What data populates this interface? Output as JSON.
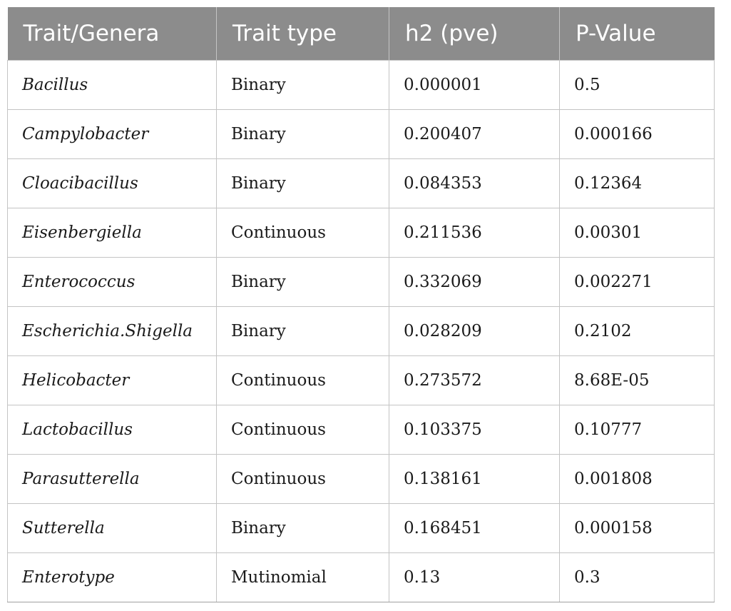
{
  "table": {
    "headers": [
      "Trait/Genera",
      "Trait type",
      "h2 (pve)",
      "P-Value"
    ],
    "rows": [
      {
        "genus": "Bacillus",
        "trait_type": "Binary",
        "h2": "0.000001",
        "p_value": "0.5"
      },
      {
        "genus": "Campylobacter",
        "trait_type": "Binary",
        "h2": "0.200407",
        "p_value": "0.000166"
      },
      {
        "genus": "Cloacibacillus",
        "trait_type": "Binary",
        "h2": "0.084353",
        "p_value": "0.12364"
      },
      {
        "genus": "Eisenbergiella",
        "trait_type": "Continuous",
        "h2": "0.211536",
        "p_value": "0.00301"
      },
      {
        "genus": "Enterococcus",
        "trait_type": "Binary",
        "h2": "0.332069",
        "p_value": "0.002271"
      },
      {
        "genus": "Escherichia.Shigella",
        "trait_type": "Binary",
        "h2": "0.028209",
        "p_value": "0.2102"
      },
      {
        "genus": "Helicobacter",
        "trait_type": "Continuous",
        "h2": "0.273572",
        "p_value": "8.68E-05"
      },
      {
        "genus": "Lactobacillus",
        "trait_type": "Continuous",
        "h2": "0.103375",
        "p_value": "0.10777"
      },
      {
        "genus": "Parasutterella",
        "trait_type": "Continuous",
        "h2": "0.138161",
        "p_value": "0.001808"
      },
      {
        "genus": "Sutterella",
        "trait_type": "Binary",
        "h2": "0.168451",
        "p_value": "0.000158"
      },
      {
        "genus": "Enterotype",
        "trait_type": "Mutinomial",
        "h2": "0.13",
        "p_value": "0.3"
      }
    ]
  }
}
